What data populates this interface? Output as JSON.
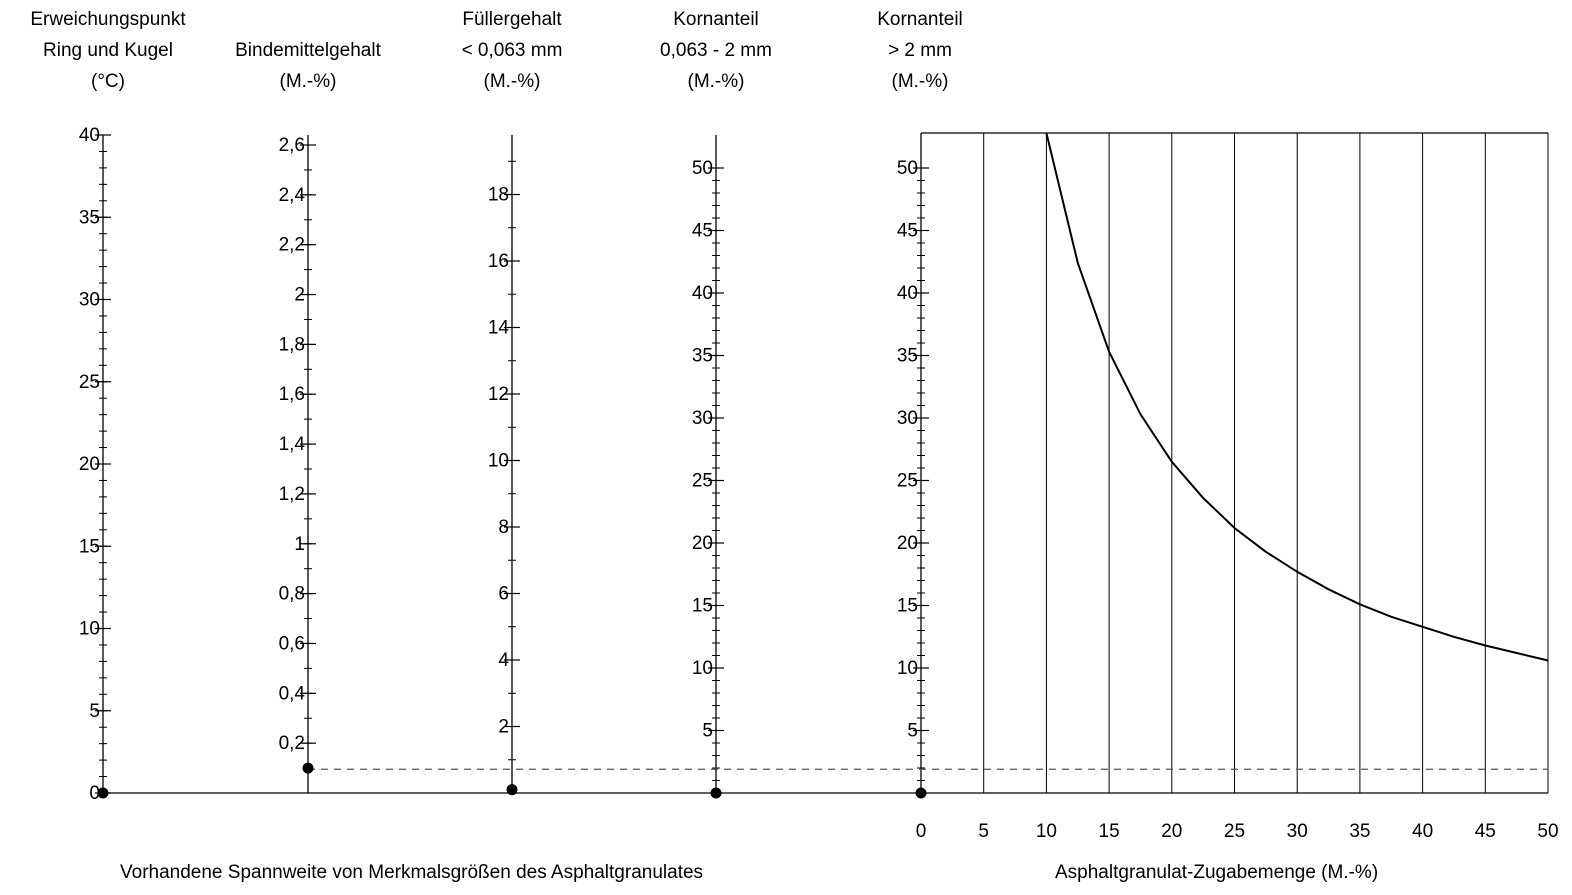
{
  "columns": [
    {
      "id": "erweichung",
      "title_lines": [
        "Erweichungspunkt",
        "Ring und Kugel",
        "(°C)"
      ]
    },
    {
      "id": "bindemittel",
      "title_lines": [
        "",
        "Bindemittelgehalt",
        "(M.-%)"
      ]
    },
    {
      "id": "fueller",
      "title_lines": [
        "Füllergehalt",
        "< 0,063 mm",
        "(M.-%)"
      ]
    },
    {
      "id": "korn1",
      "title_lines": [
        "Kornanteil",
        "0,063 - 2 mm",
        "(M.-%)"
      ]
    },
    {
      "id": "korn2",
      "title_lines": [
        "Kornanteil",
        "> 2 mm",
        "(M.-%)"
      ]
    }
  ],
  "bottom_left_label": "Vorhandene Spannweite von Merkmalsgrößen des Asphaltgranulates",
  "bottom_right_label": "Asphaltgranulat-Zugabemenge (M.-%)",
  "chart_data": {
    "type": "line",
    "axes": [
      {
        "id": "erweichung",
        "min": 0,
        "max": 40,
        "major_ticks": [
          0,
          5,
          10,
          15,
          20,
          25,
          30,
          35,
          40
        ],
        "minor_step": 1,
        "tick_labels": [
          "0",
          "5",
          "10",
          "15",
          "20",
          "25",
          "30",
          "35",
          "40"
        ]
      },
      {
        "id": "bindemittel",
        "min": 0,
        "max": 2.6,
        "major_ticks": [
          0.2,
          0.4,
          0.6,
          0.8,
          1,
          1.2,
          1.4,
          1.6,
          1.8,
          2,
          2.2,
          2.4,
          2.6
        ],
        "minor_step": 0.1,
        "tick_labels": [
          "0,2",
          "0,4",
          "0,6",
          "0,8",
          "1",
          "1,2",
          "1,4",
          "1,6",
          "1,8",
          "2",
          "2,2",
          "2,4",
          "2,6"
        ]
      },
      {
        "id": "fueller",
        "min": 0,
        "max": 20,
        "major_ticks": [
          2,
          4,
          6,
          8,
          10,
          12,
          14,
          16,
          18
        ],
        "minor_step": 1,
        "tick_labels": [
          "2",
          "4",
          "6",
          "8",
          "10",
          "12",
          "14",
          "16",
          "18"
        ]
      },
      {
        "id": "korn1",
        "min": 0,
        "max": 50,
        "major_ticks": [
          5,
          10,
          15,
          20,
          25,
          30,
          35,
          40,
          45,
          50
        ],
        "minor_step": 1,
        "tick_labels": [
          "5",
          "10",
          "15",
          "20",
          "25",
          "30",
          "35",
          "40",
          "45",
          "50"
        ]
      },
      {
        "id": "korn2",
        "min": 0,
        "max": 50,
        "major_ticks": [
          5,
          10,
          15,
          20,
          25,
          30,
          35,
          40,
          45,
          50
        ],
        "minor_step": 1,
        "tick_labels": [
          "5",
          "10",
          "15",
          "20",
          "25",
          "30",
          "35",
          "40",
          "45",
          "50"
        ]
      }
    ],
    "x": {
      "min": 0,
      "max": 50,
      "ticks": [
        0,
        5,
        10,
        15,
        20,
        25,
        30,
        35,
        40,
        45,
        50
      ],
      "tick_labels": [
        "0",
        "5",
        "10",
        "15",
        "20",
        "25",
        "30",
        "35",
        "40",
        "45",
        "50"
      ],
      "label": "Asphaltgranulat-Zugabemenge (M.-%)"
    },
    "y": {
      "min": 0,
      "max": 50
    },
    "vertical_grid": true,
    "curve": {
      "x": [
        10,
        12.5,
        15,
        17.5,
        20,
        22.5,
        25,
        27.5,
        30,
        32.5,
        35,
        37.5,
        40,
        42.5,
        45,
        47.5,
        50
      ],
      "y": [
        53,
        42.4,
        35.3,
        30.3,
        26.5,
        23.6,
        21.2,
        19.3,
        17.7,
        16.3,
        15.1,
        14.1,
        13.3,
        12.5,
        11.8,
        11.2,
        10.6
      ]
    },
    "markers": [
      {
        "axis": "erweichung",
        "value": 0
      },
      {
        "axis": "bindemittel",
        "value": 0.1
      },
      {
        "axis": "fueller",
        "value": 0.1
      },
      {
        "axis": "korn1",
        "value": 0
      },
      {
        "axis": "korn2",
        "value": 0
      }
    ],
    "reference_line": {
      "value": 1.9,
      "style": "dashed"
    }
  }
}
